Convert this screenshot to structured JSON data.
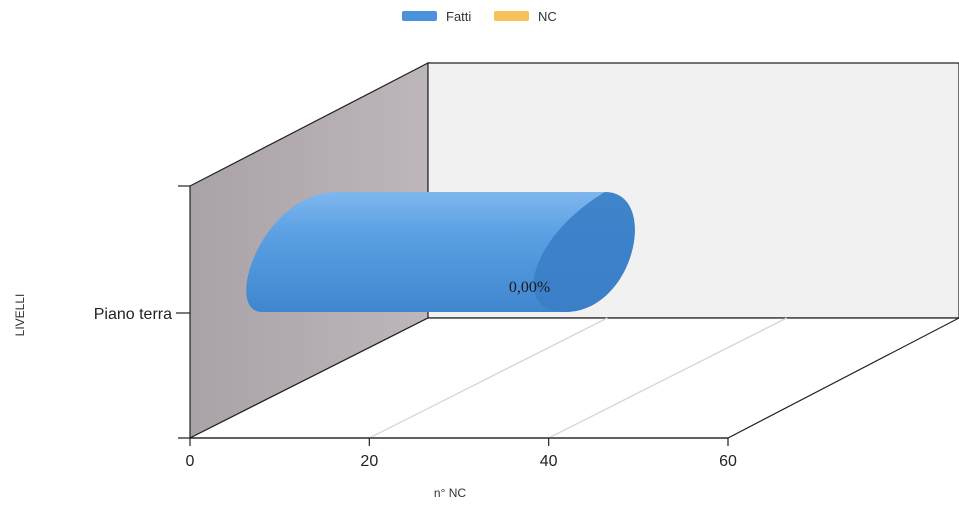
{
  "chart_data": {
    "type": "bar",
    "orientation": "horizontal",
    "style": "3d-cylinder",
    "categories": [
      "Piano terra"
    ],
    "series": [
      {
        "name": "Fatti",
        "values": [
          48.5
        ],
        "color": "#4a93dc",
        "data_labels": [
          "0,00%"
        ]
      },
      {
        "name": "NC",
        "values": [
          0
        ],
        "color": "#f6c05a"
      }
    ],
    "xlabel": "n° NC",
    "ylabel": "LIVELLI",
    "xlim": [
      0,
      60
    ],
    "xticks": [
      "0",
      "20",
      "40",
      "60"
    ],
    "legend": "top-center",
    "grid": true,
    "colors": {
      "back_wall": "#f2f1f2",
      "side_wall": "#b3adb1",
      "floor": "#ffffff",
      "bar_main": "#4a93dc",
      "bar_cap": "#3a7ec6"
    }
  }
}
